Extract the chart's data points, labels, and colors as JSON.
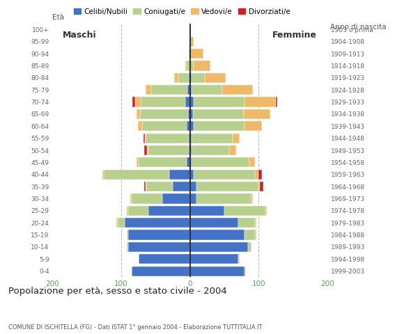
{
  "age_groups": [
    "0-4",
    "5-9",
    "10-14",
    "15-19",
    "20-24",
    "25-29",
    "30-34",
    "35-39",
    "40-44",
    "45-49",
    "50-54",
    "55-59",
    "60-64",
    "65-69",
    "70-74",
    "75-79",
    "80-84",
    "85-89",
    "90-94",
    "95-99",
    "100+"
  ],
  "birth_years": [
    "1999-2003",
    "1994-1998",
    "1989-1993",
    "1984-1988",
    "1979-1983",
    "1974-1978",
    "1969-1973",
    "1964-1968",
    "1959-1963",
    "1954-1958",
    "1949-1953",
    "1944-1948",
    "1939-1943",
    "1934-1938",
    "1929-1933",
    "1924-1928",
    "1919-1923",
    "1914-1918",
    "1909-1913",
    "1904-1908",
    "1903 o prima"
  ],
  "maschi": {
    "celibi": [
      85,
      75,
      90,
      90,
      95,
      60,
      40,
      25,
      30,
      5,
      2,
      2,
      5,
      3,
      7,
      4,
      2,
      0,
      0,
      0,
      0
    ],
    "coniugati": [
      0,
      0,
      2,
      2,
      10,
      30,
      45,
      38,
      95,
      70,
      58,
      62,
      65,
      70,
      65,
      52,
      15,
      5,
      2,
      0,
      0
    ],
    "vedovi": [
      0,
      0,
      0,
      0,
      2,
      2,
      2,
      2,
      2,
      3,
      2,
      2,
      6,
      5,
      8,
      8,
      6,
      2,
      0,
      0,
      0
    ],
    "divorziati": [
      0,
      0,
      0,
      0,
      0,
      0,
      0,
      2,
      0,
      0,
      5,
      2,
      0,
      0,
      4,
      0,
      0,
      0,
      0,
      0,
      0
    ]
  },
  "femmine": {
    "nubili": [
      80,
      70,
      85,
      80,
      70,
      50,
      10,
      10,
      5,
      2,
      2,
      2,
      5,
      4,
      5,
      2,
      2,
      0,
      0,
      0,
      0
    ],
    "coniugate": [
      2,
      2,
      5,
      15,
      25,
      60,
      80,
      90,
      90,
      85,
      55,
      60,
      75,
      75,
      75,
      45,
      20,
      5,
      0,
      0,
      0
    ],
    "vedove": [
      0,
      0,
      0,
      2,
      2,
      2,
      2,
      2,
      5,
      8,
      10,
      10,
      25,
      38,
      45,
      45,
      30,
      25,
      20,
      5,
      0
    ],
    "divorziate": [
      0,
      0,
      0,
      0,
      0,
      0,
      0,
      5,
      5,
      0,
      0,
      0,
      0,
      0,
      2,
      0,
      0,
      0,
      0,
      0,
      0
    ]
  },
  "colors": {
    "celibi": "#4472c4",
    "coniugati": "#b8d08d",
    "vedovi": "#f0b96a",
    "divorziati": "#cc2222"
  },
  "xlim": 200,
  "title": "Popolazione per età, sesso e stato civile - 2004",
  "subtitle": "COMUNE DI ISCHITELLA (FG) - Dati ISTAT 1° gennaio 2004 - Elaborazione TUTTITALIA.IT",
  "legend_labels": [
    "Celibi/Nubili",
    "Coniugati/e",
    "Vedovi/e",
    "Divorziati/e"
  ],
  "xlabel_maschi": "Maschi",
  "xlabel_femmine": "Femmine",
  "eta_label": "Età",
  "anno_label": "Anno di nascita",
  "bg_color": "#ffffff",
  "bar_edge_color": "#ffffff",
  "grid_color": "#bbbbbb",
  "tick_color": "#5a9e5a"
}
